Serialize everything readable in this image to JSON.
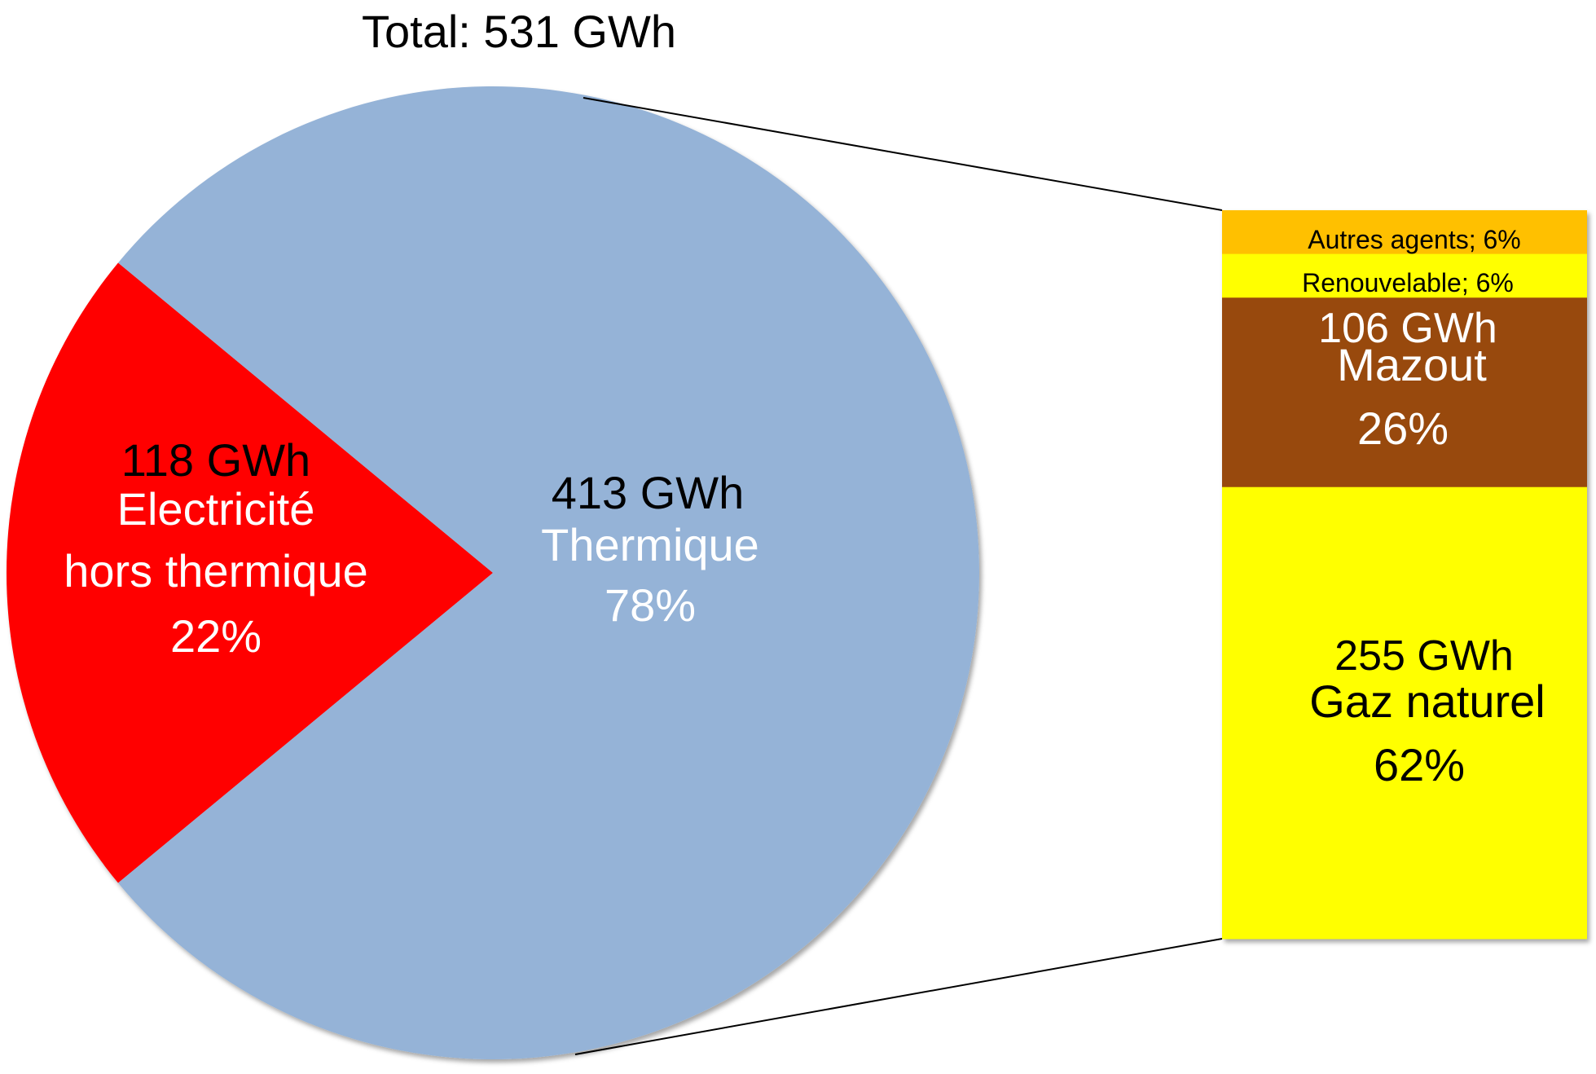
{
  "chart_data": {
    "type": "pie",
    "title": "Total: 531 GWh",
    "slices": [
      {
        "gwh": "118 GWh",
        "label_lines": [
          "Electricité",
          "hors thermique"
        ],
        "percent_label": "22%",
        "value": 22,
        "color": "#ff0000",
        "value_color": "#000000",
        "text_color": "#ffffff"
      },
      {
        "gwh": "413 GWh",
        "label_lines": [
          "Thermique"
        ],
        "percent_label": "78%",
        "value": 78,
        "color": "#95b3d7",
        "value_color": "#000000",
        "text_color": "#ffffff"
      }
    ],
    "breakdown": {
      "type": "stacked-bar",
      "parent_slice": "Thermique",
      "segments": [
        {
          "label": "Autres agents; 6%",
          "value": 6,
          "color": "#ffc000",
          "text_color": "#000000"
        },
        {
          "label": "Renouvelable; 6%",
          "value": 6,
          "color": "#ffff00",
          "text_color": "#000000"
        },
        {
          "gwh": "106 GWh",
          "label": "Mazout",
          "percent_label": "26%",
          "value": 26,
          "color": "#984807",
          "text_color": "#ffffff"
        },
        {
          "gwh": "255 GWh",
          "label": "Gaz naturel",
          "percent_label": "62%",
          "value": 62,
          "color": "#ffff00",
          "text_color": "#000000"
        }
      ]
    }
  }
}
